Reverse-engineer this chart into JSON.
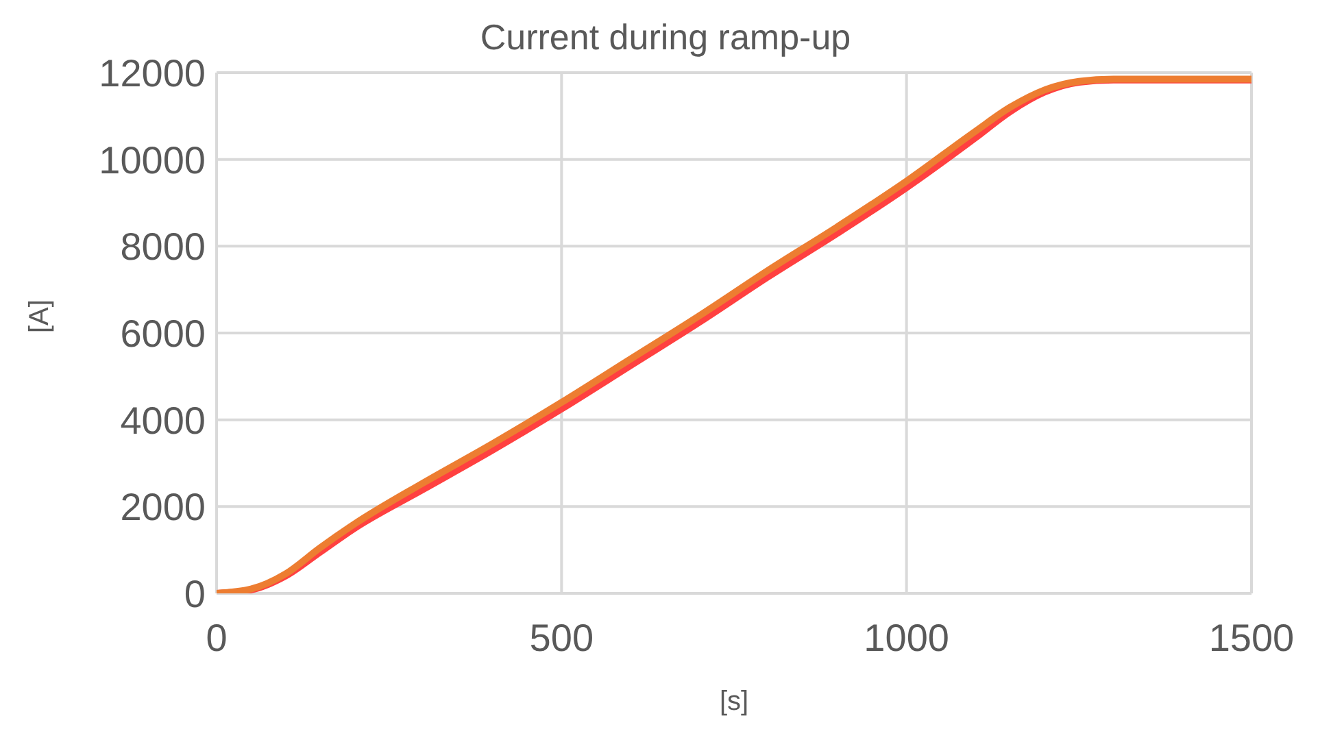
{
  "chart_data": {
    "type": "line",
    "title": "Current during ramp-up",
    "xlabel": "[s]",
    "ylabel": "[A]",
    "xlim": [
      0,
      1500
    ],
    "xticks": [
      0,
      500,
      1000,
      1500
    ],
    "ylim": [
      0,
      12000
    ],
    "yticks": [
      0,
      2000,
      4000,
      6000,
      8000,
      10000,
      12000
    ],
    "grid": true,
    "marker": "none",
    "line_style": "solid",
    "series": [
      {
        "color": "#ff4040",
        "x": [
          0,
          50,
          100,
          150,
          200,
          300,
          400,
          500,
          600,
          700,
          800,
          900,
          1000,
          1100,
          1150,
          1200,
          1250,
          1300,
          1500
        ],
        "values": [
          0,
          80,
          400,
          950,
          1500,
          2400,
          3300,
          4250,
          5250,
          6250,
          7300,
          8300,
          9350,
          10500,
          11100,
          11550,
          11780,
          11830,
          11830
        ]
      },
      {
        "color": "#ed7d31",
        "x": [
          0,
          50,
          100,
          150,
          200,
          300,
          400,
          500,
          600,
          700,
          800,
          900,
          1000,
          1100,
          1150,
          1200,
          1250,
          1300,
          1500
        ],
        "values": [
          0,
          100,
          450,
          1050,
          1600,
          2550,
          3450,
          4400,
          5400,
          6400,
          7450,
          8450,
          9500,
          10650,
          11200,
          11600,
          11800,
          11850,
          11850
        ]
      }
    ]
  }
}
